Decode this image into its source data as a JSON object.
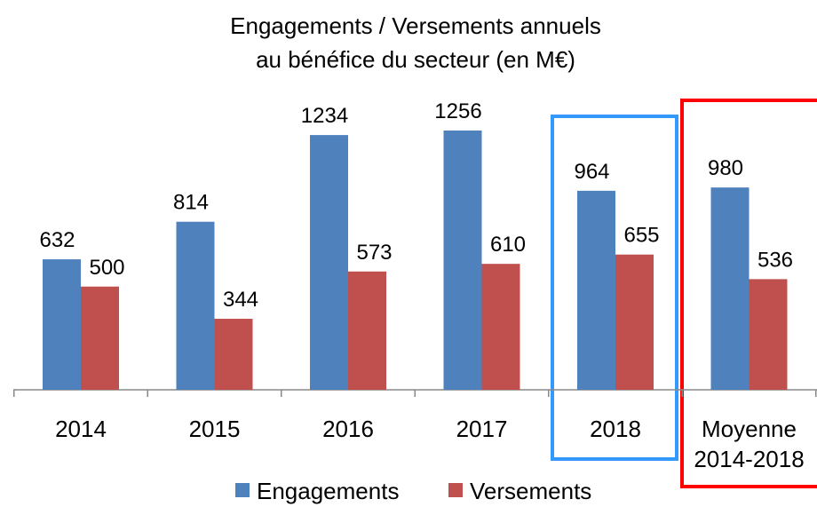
{
  "chart_data": {
    "type": "bar",
    "title": [
      "Engagements / Versements annuels",
      "au bénéfice du secteur (en M€)"
    ],
    "categories": [
      "2014",
      "2015",
      "2016",
      "2017",
      "2018",
      "Moyenne 2014-2018"
    ],
    "series": [
      {
        "name": "Engagements",
        "color": "#4f81bd",
        "values": [
          632,
          814,
          1234,
          1256,
          964,
          980
        ]
      },
      {
        "name": "Versements",
        "color": "#c0504d",
        "values": [
          500,
          344,
          573,
          610,
          655,
          536
        ]
      }
    ],
    "legend": "bottom"
  }
}
